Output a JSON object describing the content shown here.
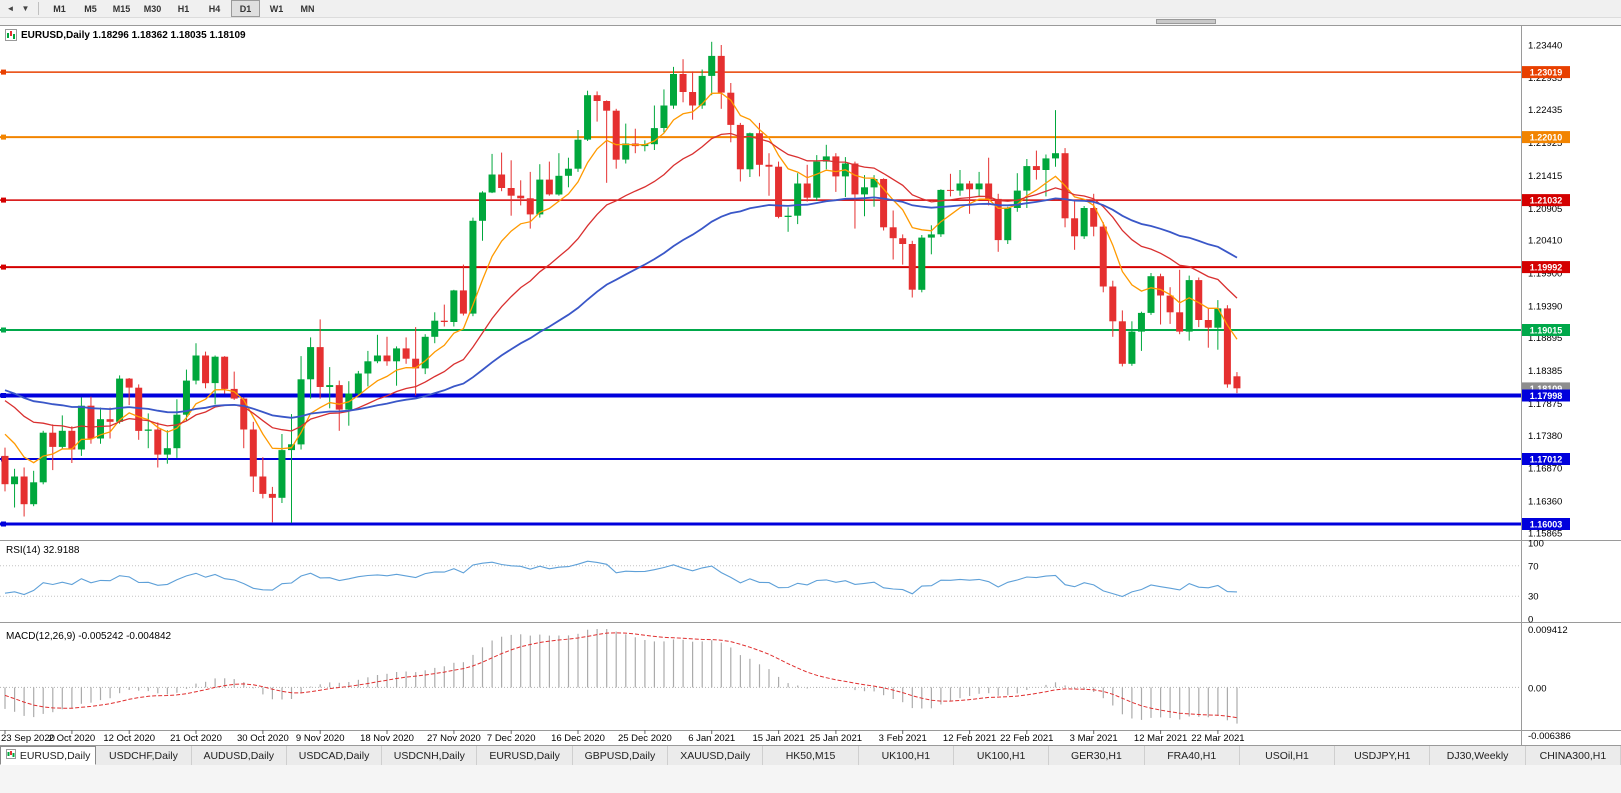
{
  "toolbar": {
    "nav_buttons": [
      {
        "name": "scroll-left",
        "glyph": "◄"
      },
      {
        "name": "dropdown",
        "glyph": "▼"
      }
    ],
    "timeframes": [
      "M1",
      "M5",
      "M15",
      "M30",
      "H1",
      "H4",
      "D1",
      "W1",
      "MN"
    ],
    "active_timeframe": "D1"
  },
  "chart": {
    "title": "EURUSD,Daily 1.18296 1.18362 1.18035 1.18109"
  },
  "chart_data": {
    "type": "candlestick",
    "symbol": "EURUSD",
    "timeframe": "Daily",
    "ohlc_current": {
      "open": "1.18296",
      "high": "1.18362",
      "low": "1.18035",
      "close": "1.18109"
    },
    "candle_colors": {
      "up": "#00A73C",
      "down": "#E53030"
    },
    "price_axis": {
      "labels": [
        "1.23440",
        "1.22935",
        "1.22435",
        "1.21925",
        "1.21415",
        "1.20905",
        "1.20410",
        "1.19900",
        "1.19390",
        "1.18895",
        "1.18385",
        "1.17875",
        "1.17380",
        "1.16870",
        "1.16360",
        "1.15865"
      ]
    },
    "h_lines": [
      {
        "price": 1.23019,
        "label": "1.23019",
        "color": "#E84000",
        "width": 1.5
      },
      {
        "price": 1.2201,
        "label": "1.22010",
        "color": "#F28400",
        "width": 2
      },
      {
        "price": 1.21032,
        "label": "1.21032",
        "color": "#D40000",
        "width": 1.5
      },
      {
        "price": 1.19992,
        "label": "1.19992",
        "color": "#D40000",
        "width": 2
      },
      {
        "price": 1.19015,
        "label": "1.19015",
        "color": "#00A84A",
        "width": 2
      },
      {
        "price": 1.17998,
        "label": "1.17998",
        "color": "#0000DC",
        "width": 4
      },
      {
        "price": 1.17012,
        "label": "1.17012",
        "color": "#0000DC",
        "width": 2
      },
      {
        "price": 1.16003,
        "label": "1.16003",
        "color": "#0000DC",
        "width": 3
      }
    ],
    "current_price": {
      "label": "1.18109",
      "value": 1.18109,
      "color": "#8E8E8E"
    },
    "moving_averages": [
      {
        "name": "fast-ma",
        "period": 8,
        "color": "#FF9A00",
        "width": 1.3
      },
      {
        "name": "mid-ma",
        "period": 21,
        "color": "#D93030",
        "width": 1.3
      },
      {
        "name": "slow-ma",
        "period": 50,
        "color": "#3A57C8",
        "width": 1.8
      }
    ],
    "date_labels": [
      {
        "i": 0,
        "t": "23 Sep 2020"
      },
      {
        "i": 7,
        "t": "2 Oct 2020"
      },
      {
        "i": 13,
        "t": "12 Oct 2020"
      },
      {
        "i": 20,
        "t": "21 Oct 2020"
      },
      {
        "i": 27,
        "t": "30 Oct 2020"
      },
      {
        "i": 33,
        "t": "9 Nov 2020"
      },
      {
        "i": 40,
        "t": "18 Nov 2020"
      },
      {
        "i": 47,
        "t": "27 Nov 2020"
      },
      {
        "i": 53,
        "t": "7 Dec 2020"
      },
      {
        "i": 60,
        "t": "16 Dec 2020"
      },
      {
        "i": 67,
        "t": "25 Dec 2020"
      },
      {
        "i": 74,
        "t": "6 Jan 2021"
      },
      {
        "i": 81,
        "t": "15 Jan 2021"
      },
      {
        "i": 87,
        "t": "25 Jan 2021"
      },
      {
        "i": 94,
        "t": "3 Feb 2021"
      },
      {
        "i": 101,
        "t": "12 Feb 2021"
      },
      {
        "i": 107,
        "t": "22 Feb 2021"
      },
      {
        "i": 114,
        "t": "3 Mar 2021"
      },
      {
        "i": 121,
        "t": "12 Mar 2021"
      },
      {
        "i": 127,
        "t": "22 Mar 2021"
      }
    ],
    "candles": [
      [
        1.1706,
        1.1719,
        1.1651,
        1.1662
      ],
      [
        1.1662,
        1.1686,
        1.1626,
        1.1674
      ],
      [
        1.1674,
        1.1688,
        1.1612,
        1.1631
      ],
      [
        1.1631,
        1.1683,
        1.1628,
        1.1665
      ],
      [
        1.1665,
        1.1745,
        1.1662,
        1.1742
      ],
      [
        1.1742,
        1.1755,
        1.1684,
        1.172
      ],
      [
        1.172,
        1.1769,
        1.1717,
        1.1745
      ],
      [
        1.1745,
        1.1752,
        1.1695,
        1.1716
      ],
      [
        1.1716,
        1.1797,
        1.1706,
        1.1784
      ],
      [
        1.1784,
        1.1798,
        1.1725,
        1.1733
      ],
      [
        1.1733,
        1.1781,
        1.1725,
        1.1763
      ],
      [
        1.1763,
        1.1781,
        1.1733,
        1.1759
      ],
      [
        1.1759,
        1.1831,
        1.1756,
        1.1826
      ],
      [
        1.1826,
        1.1827,
        1.1785,
        1.1812
      ],
      [
        1.1812,
        1.1817,
        1.1731,
        1.1745
      ],
      [
        1.1745,
        1.1772,
        1.1718,
        1.1747
      ],
      [
        1.1747,
        1.1758,
        1.1688,
        1.1708
      ],
      [
        1.1708,
        1.1746,
        1.1694,
        1.1718
      ],
      [
        1.1718,
        1.1794,
        1.1703,
        1.177
      ],
      [
        1.177,
        1.184,
        1.176,
        1.1823
      ],
      [
        1.1823,
        1.1881,
        1.1817,
        1.1862
      ],
      [
        1.1862,
        1.1868,
        1.1811,
        1.1819
      ],
      [
        1.1819,
        1.1862,
        1.1786,
        1.186
      ],
      [
        1.186,
        1.1861,
        1.1803,
        1.181
      ],
      [
        1.181,
        1.1837,
        1.1793,
        1.1795
      ],
      [
        1.1795,
        1.1797,
        1.1718,
        1.1747
      ],
      [
        1.1747,
        1.1759,
        1.165,
        1.1674
      ],
      [
        1.1674,
        1.1704,
        1.164,
        1.1647
      ],
      [
        1.1647,
        1.1658,
        1.1603,
        1.1641
      ],
      [
        1.1641,
        1.174,
        1.1633,
        1.1715
      ],
      [
        1.1715,
        1.1771,
        1.1602,
        1.1724
      ],
      [
        1.1724,
        1.1861,
        1.1716,
        1.1825
      ],
      [
        1.1825,
        1.189,
        1.1795,
        1.1875
      ],
      [
        1.1875,
        1.1918,
        1.1795,
        1.1813
      ],
      [
        1.1813,
        1.1844,
        1.178,
        1.1816
      ],
      [
        1.1816,
        1.1823,
        1.1745,
        1.1778
      ],
      [
        1.1778,
        1.1822,
        1.1753,
        1.1803
      ],
      [
        1.1803,
        1.1838,
        1.1799,
        1.1834
      ],
      [
        1.1834,
        1.1869,
        1.1814,
        1.1853
      ],
      [
        1.1853,
        1.1894,
        1.185,
        1.1862
      ],
      [
        1.1862,
        1.1891,
        1.1846,
        1.1853
      ],
      [
        1.1853,
        1.1876,
        1.1815,
        1.1873
      ],
      [
        1.1873,
        1.189,
        1.1849,
        1.1857
      ],
      [
        1.1857,
        1.1906,
        1.18,
        1.1842
      ],
      [
        1.1842,
        1.1895,
        1.1833,
        1.1891
      ],
      [
        1.1891,
        1.1929,
        1.1881,
        1.1916
      ],
      [
        1.1916,
        1.1941,
        1.1907,
        1.1914
      ],
      [
        1.1914,
        1.1964,
        1.1907,
        1.1963
      ],
      [
        1.1963,
        1.2003,
        1.1924,
        1.1927
      ],
      [
        1.1927,
        1.2076,
        1.1923,
        1.2071
      ],
      [
        1.2071,
        1.2117,
        1.204,
        1.2115
      ],
      [
        1.2115,
        1.2175,
        1.2114,
        1.2143
      ],
      [
        1.2143,
        1.2177,
        1.2117,
        1.2122
      ],
      [
        1.2122,
        1.2165,
        1.2079,
        1.211
      ],
      [
        1.211,
        1.2134,
        1.2095,
        1.2106
      ],
      [
        1.2106,
        1.2147,
        1.2059,
        1.2081
      ],
      [
        1.2081,
        1.2159,
        1.2076,
        1.2135
      ],
      [
        1.2135,
        1.2163,
        1.211,
        1.2112
      ],
      [
        1.2112,
        1.2176,
        1.211,
        1.2141
      ],
      [
        1.2141,
        1.2169,
        1.2123,
        1.2152
      ],
      [
        1.2152,
        1.2212,
        1.2147,
        1.2197
      ],
      [
        1.2197,
        1.2273,
        1.2195,
        1.2266
      ],
      [
        1.2266,
        1.2272,
        1.2225,
        1.2257
      ],
      [
        1.2257,
        1.2258,
        1.213,
        1.2242
      ],
      [
        1.2242,
        1.2245,
        1.2152,
        1.2166
      ],
      [
        1.2166,
        1.2222,
        1.216,
        1.2191
      ],
      [
        1.2191,
        1.2214,
        1.2176,
        1.2187
      ],
      [
        1.2187,
        1.2196,
        1.2179,
        1.219
      ],
      [
        1.219,
        1.225,
        1.2181,
        1.2215
      ],
      [
        1.2215,
        1.2275,
        1.2208,
        1.225
      ],
      [
        1.225,
        1.231,
        1.2245,
        1.2299
      ],
      [
        1.2299,
        1.2322,
        1.2255,
        1.2271
      ],
      [
        1.2271,
        1.2303,
        1.2228,
        1.225
      ],
      [
        1.225,
        1.2306,
        1.2245,
        1.2296
      ],
      [
        1.2296,
        1.2349,
        1.2266,
        1.2327
      ],
      [
        1.2327,
        1.2344,
        1.2245,
        1.227
      ],
      [
        1.227,
        1.2285,
        1.2193,
        1.222
      ],
      [
        1.222,
        1.2223,
        1.2132,
        1.2151
      ],
      [
        1.2151,
        1.2208,
        1.2139,
        1.2207
      ],
      [
        1.2207,
        1.2223,
        1.214,
        1.2158
      ],
      [
        1.2158,
        1.2176,
        1.211,
        1.2155
      ],
      [
        1.2155,
        1.2163,
        1.2075,
        1.2077
      ],
      [
        1.2077,
        1.2092,
        1.2054,
        1.2079
      ],
      [
        1.2079,
        1.2145,
        1.2066,
        1.2129
      ],
      [
        1.2129,
        1.2158,
        1.2101,
        1.2107
      ],
      [
        1.2107,
        1.2173,
        1.2102,
        1.2163
      ],
      [
        1.2163,
        1.2189,
        1.2151,
        1.2171
      ],
      [
        1.2171,
        1.2176,
        1.2116,
        1.214
      ],
      [
        1.214,
        1.217,
        1.2108,
        1.216
      ],
      [
        1.216,
        1.2163,
        1.2059,
        1.2112
      ],
      [
        1.2112,
        1.2142,
        1.2078,
        1.2123
      ],
      [
        1.2123,
        1.2142,
        1.2093,
        1.2136
      ],
      [
        1.2136,
        1.2137,
        1.2056,
        1.2061
      ],
      [
        1.2061,
        1.2087,
        1.2011,
        1.2044
      ],
      [
        1.2044,
        1.205,
        1.2003,
        1.2035
      ],
      [
        1.2035,
        1.204,
        1.1952,
        1.1964
      ],
      [
        1.1964,
        1.2049,
        1.196,
        1.2045
      ],
      [
        1.2045,
        1.2064,
        1.2019,
        1.205
      ],
      [
        1.205,
        1.212,
        1.2046,
        1.2119
      ],
      [
        1.2119,
        1.2144,
        1.2109,
        1.2118
      ],
      [
        1.2118,
        1.215,
        1.211,
        1.2129
      ],
      [
        1.2129,
        1.2133,
        1.2082,
        1.212
      ],
      [
        1.212,
        1.2147,
        1.2109,
        1.2129
      ],
      [
        1.2129,
        1.2169,
        1.2095,
        1.2105
      ],
      [
        1.2105,
        1.2113,
        1.2023,
        1.2041
      ],
      [
        1.2041,
        1.2093,
        1.2035,
        1.2091
      ],
      [
        1.2091,
        1.2145,
        1.2085,
        1.2118
      ],
      [
        1.2118,
        1.2167,
        1.2091,
        1.2156
      ],
      [
        1.2156,
        1.218,
        1.2135,
        1.215
      ],
      [
        1.215,
        1.2174,
        1.2109,
        1.2168
      ],
      [
        1.2168,
        1.2243,
        1.2155,
        1.2176
      ],
      [
        1.2176,
        1.2184,
        1.2061,
        1.2075
      ],
      [
        1.2075,
        1.2101,
        1.2026,
        1.2047
      ],
      [
        1.2047,
        1.2094,
        1.2043,
        1.2091
      ],
      [
        1.2091,
        1.2113,
        1.2047,
        1.2062
      ],
      [
        1.2062,
        1.2069,
        1.196,
        1.1969
      ],
      [
        1.1969,
        1.1978,
        1.1891,
        1.1915
      ],
      [
        1.1915,
        1.1932,
        1.1845,
        1.1849
      ],
      [
        1.1849,
        1.1915,
        1.1846,
        1.1899
      ],
      [
        1.1899,
        1.193,
        1.1869,
        1.1928
      ],
      [
        1.1928,
        1.199,
        1.1925,
        1.1985
      ],
      [
        1.1985,
        1.1989,
        1.191,
        1.1955
      ],
      [
        1.1955,
        1.1968,
        1.1911,
        1.1929
      ],
      [
        1.1929,
        1.1995,
        1.1895,
        1.1899
      ],
      [
        1.1899,
        1.1986,
        1.1885,
        1.1979
      ],
      [
        1.1979,
        1.1983,
        1.1906,
        1.1917
      ],
      [
        1.1917,
        1.1936,
        1.1874,
        1.1905
      ],
      [
        1.1905,
        1.1948,
        1.1871,
        1.1935
      ],
      [
        1.1935,
        1.194,
        1.1812,
        1.1817
      ],
      [
        1.18296,
        1.18362,
        1.18035,
        1.18109
      ]
    ],
    "prehistory": [
      1.179,
      1.1808,
      1.1838,
      1.1846,
      1.1872,
      1.1918,
      1.1932,
      1.1902,
      1.1842,
      1.183,
      1.1836,
      1.1812,
      1.1792,
      1.1828,
      1.1852,
      1.1898,
      1.1933,
      1.194,
      1.1882,
      1.1846,
      1.1822,
      1.181,
      1.1848,
      1.1862,
      1.184,
      1.1792,
      1.1762,
      1.1722,
      1.1692,
      1.1716
    ],
    "rsi": {
      "label": "RSI(14) 32.9188",
      "period": 14,
      "value": "32.9188",
      "levels": [
        "100",
        "70",
        "30",
        "0"
      ],
      "color": "#5EA0D8",
      "ylim": [
        0,
        100
      ]
    },
    "macd": {
      "label": "MACD(12,26,9) -0.005242 -0.004842",
      "fast": 12,
      "slow": 26,
      "signal_period": 9,
      "main_value": "-0.005242",
      "signal_value": "-0.004842",
      "axis_labels": [
        "0.009412",
        "0.00",
        "-0.006386"
      ],
      "scale_max": 0.009412,
      "scale_min": -0.006386,
      "hist_color": "#ABABAB",
      "signal_color": "#E03030"
    }
  },
  "tabs": {
    "items": [
      {
        "label": "EURUSD,Daily",
        "active": true
      },
      {
        "label": "USDCHF,Daily",
        "active": false
      },
      {
        "label": "AUDUSD,Daily",
        "active": false
      },
      {
        "label": "USDCAD,Daily",
        "active": false
      },
      {
        "label": "USDCNH,Daily",
        "active": false
      },
      {
        "label": "EURUSD,Daily",
        "active": false
      },
      {
        "label": "GBPUSD,Daily",
        "active": false
      },
      {
        "label": "XAUUSD,Daily",
        "active": false
      },
      {
        "label": "HK50,M15",
        "active": false
      },
      {
        "label": "UK100,H1",
        "active": false
      },
      {
        "label": "UK100,H1",
        "active": false
      },
      {
        "label": "GER30,H1",
        "active": false
      },
      {
        "label": "FRA40,H1",
        "active": false
      },
      {
        "label": "USOil,H1",
        "active": false
      },
      {
        "label": "USDJPY,H1",
        "active": false
      },
      {
        "label": "DJ30,Weekly",
        "active": false
      },
      {
        "label": "CHINA300,H1",
        "active": false
      }
    ]
  }
}
